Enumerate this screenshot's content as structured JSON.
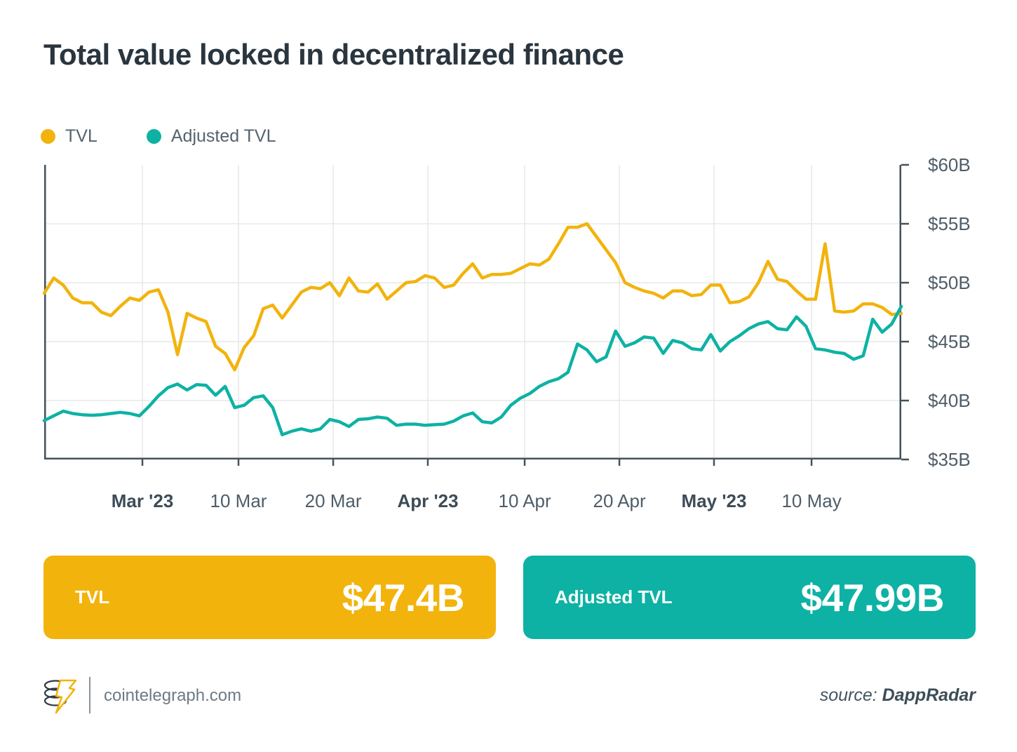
{
  "title": "Total value locked in decentralized finance",
  "legend": [
    {
      "label": "TVL",
      "color": "#F2B30D"
    },
    {
      "label": "Adjusted TVL",
      "color": "#0DB2A4"
    }
  ],
  "colors": {
    "grid": "#E7E8E8",
    "axis": "#42525D",
    "tick_text": "#4E5D68",
    "tick_text_bold": "#3D4C57",
    "title_text": "#2A353E"
  },
  "chart_data": {
    "type": "line",
    "title": "Total value locked in decentralized finance",
    "xlabel": "",
    "ylabel": "",
    "ylim": [
      35,
      60
    ],
    "grid": true,
    "legend_position": "top-left",
    "yticks": [
      {
        "value": 60,
        "label": "$60B"
      },
      {
        "value": 55,
        "label": "$55B"
      },
      {
        "value": 50,
        "label": "$50B"
      },
      {
        "value": 45,
        "label": "$45B"
      },
      {
        "value": 40,
        "label": "$40B"
      },
      {
        "value": 35,
        "label": "$35B"
      }
    ],
    "xticks": [
      {
        "label": "Mar '23",
        "pos": 0.1146,
        "bold": true
      },
      {
        "label": "10 Mar",
        "pos": 0.2267,
        "bold": false
      },
      {
        "label": "20 Mar",
        "pos": 0.3372,
        "bold": false
      },
      {
        "label": "Apr '23",
        "pos": 0.4476,
        "bold": true
      },
      {
        "label": "10 Apr",
        "pos": 0.5606,
        "bold": false
      },
      {
        "label": "20 Apr",
        "pos": 0.6711,
        "bold": false
      },
      {
        "label": "May '23",
        "pos": 0.7815,
        "bold": true
      },
      {
        "label": "10 May",
        "pos": 0.8953,
        "bold": false
      }
    ],
    "series": [
      {
        "name": "TVL",
        "color": "#F2B30D",
        "final_label": "$47.4B",
        "values": [
          49.1,
          50.4,
          49.8,
          48.7,
          48.3,
          48.3,
          47.5,
          47.2,
          48.0,
          48.7,
          48.5,
          49.2,
          49.4,
          47.5,
          43.9,
          47.4,
          47.0,
          46.7,
          44.6,
          44.0,
          42.6,
          44.5,
          45.5,
          47.8,
          48.1,
          47.0,
          48.1,
          49.2,
          49.6,
          49.5,
          50.0,
          48.9,
          50.4,
          49.3,
          49.2,
          49.9,
          48.6,
          49.3,
          50.0,
          50.1,
          50.6,
          50.4,
          49.6,
          49.8,
          50.8,
          51.6,
          50.4,
          50.7,
          50.7,
          50.8,
          51.2,
          51.6,
          51.5,
          52.0,
          53.3,
          54.7,
          54.7,
          55.0,
          53.9,
          52.8,
          51.7,
          50.0,
          49.6,
          49.3,
          49.1,
          48.7,
          49.3,
          49.3,
          48.9,
          49.0,
          49.8,
          49.8,
          48.3,
          48.4,
          48.8,
          50.0,
          51.8,
          50.3,
          50.1,
          49.3,
          48.6,
          48.6,
          53.3,
          47.6,
          47.5,
          47.6,
          48.2,
          48.2,
          47.9,
          47.3,
          47.4
        ]
      },
      {
        "name": "Adjusted TVL",
        "color": "#0DB2A4",
        "final_label": "$47.99B",
        "values": [
          38.3,
          38.7,
          39.1,
          38.9,
          38.8,
          38.75,
          38.8,
          38.9,
          39.0,
          38.9,
          38.7,
          39.5,
          40.4,
          41.1,
          41.4,
          40.9,
          41.35,
          41.3,
          40.45,
          41.2,
          39.4,
          39.6,
          40.25,
          40.4,
          39.4,
          37.1,
          37.4,
          37.6,
          37.4,
          37.6,
          38.4,
          38.2,
          37.8,
          38.4,
          38.45,
          38.6,
          38.5,
          37.9,
          38.0,
          38.0,
          37.9,
          37.95,
          38.0,
          38.25,
          38.7,
          38.95,
          38.2,
          38.1,
          38.6,
          39.6,
          40.2,
          40.6,
          41.2,
          41.6,
          41.85,
          42.4,
          44.8,
          44.3,
          43.3,
          43.7,
          45.9,
          44.6,
          44.9,
          45.4,
          45.3,
          44.0,
          45.1,
          44.9,
          44.4,
          44.3,
          45.6,
          44.2,
          45.0,
          45.5,
          46.1,
          46.5,
          46.7,
          46.1,
          46.0,
          47.1,
          46.3,
          44.4,
          44.3,
          44.1,
          44.0,
          43.5,
          43.8,
          46.9,
          45.8,
          46.5,
          47.99
        ]
      }
    ]
  },
  "cards": [
    {
      "label": "TVL",
      "value": "$47.4B",
      "color": "#F2B30D"
    },
    {
      "label": "Adjusted TVL",
      "value": "$47.99B",
      "color": "#0DB2A4"
    }
  ],
  "footer": {
    "site": "cointelegraph.com",
    "source_prefix": "source:",
    "source_name": "DappRadar"
  }
}
